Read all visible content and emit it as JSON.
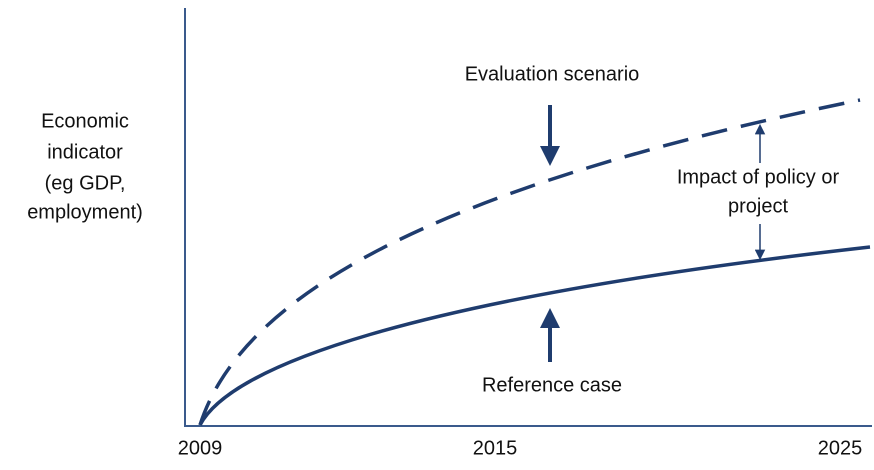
{
  "y_axis_label": [
    "Economic",
    "indicator",
    "(eg GDP,",
    "employment)"
  ],
  "x_axis_ticks": [
    "2009",
    "2015",
    "2025"
  ],
  "annotations": {
    "evaluation": "Evaluation scenario",
    "reference": "Reference case",
    "impact": [
      "Impact of policy or",
      "project"
    ]
  }
}
